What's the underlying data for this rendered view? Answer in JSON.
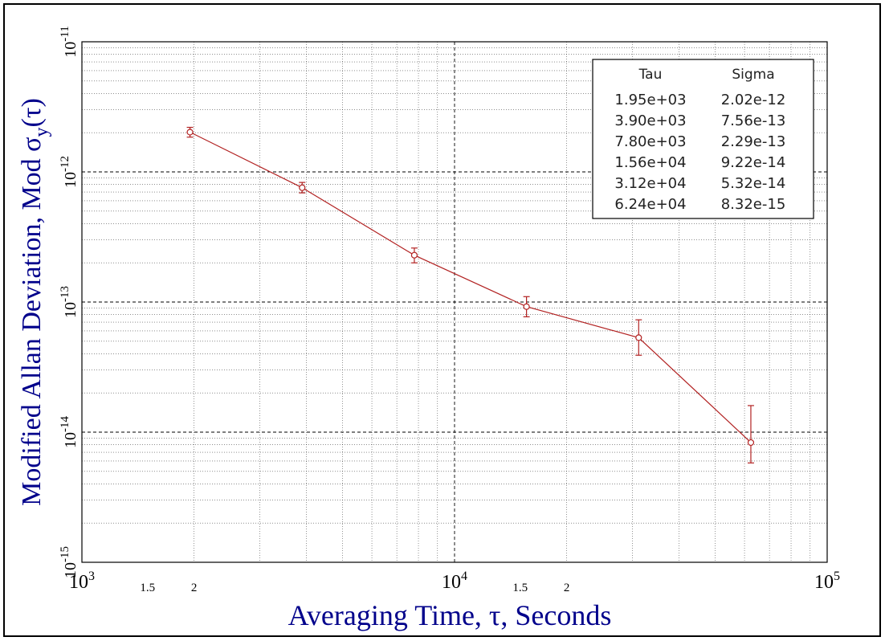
{
  "chart_data": {
    "type": "scatter",
    "title": "",
    "xlabel": "Averaging Time, τ, Seconds",
    "ylabel": {
      "prefix": "Modified Allan Deviation, Mod ",
      "symbol": "σ",
      "subscript": "y",
      "suffix": "(τ)"
    },
    "x_scale": "log",
    "y_scale": "log",
    "xlim": [
      1000,
      100000
    ],
    "ylim": [
      1e-15,
      1e-11
    ],
    "grid": true,
    "x_ticks": [
      {
        "value": 1000,
        "base": "10",
        "exp": "3"
      },
      {
        "value": 10000,
        "base": "10",
        "exp": "4"
      },
      {
        "value": 100000,
        "base": "10",
        "exp": "5"
      }
    ],
    "x_minor_labels": [
      {
        "value": 1500,
        "label": "1.5"
      },
      {
        "value": 2000,
        "label": "2"
      },
      {
        "value": 15000,
        "label": "1.5"
      },
      {
        "value": 20000,
        "label": "2"
      }
    ],
    "y_ticks": [
      {
        "value": 1e-15,
        "base": "10",
        "exp": "-15"
      },
      {
        "value": 1e-14,
        "base": "10",
        "exp": "-14"
      },
      {
        "value": 1e-13,
        "base": "10",
        "exp": "-13"
      },
      {
        "value": 1e-12,
        "base": "10",
        "exp": "-12"
      },
      {
        "value": 1e-11,
        "base": "10",
        "exp": "-11"
      }
    ],
    "series": [
      {
        "points": [
          {
            "x": 1950,
            "y": 2.02e-12,
            "err_low": 1.85e-12,
            "err_high": 2.2e-12
          },
          {
            "x": 3900,
            "y": 7.56e-13,
            "err_low": 6.9e-13,
            "err_high": 8.3e-13
          },
          {
            "x": 7800,
            "y": 2.29e-13,
            "err_low": 2e-13,
            "err_high": 2.6e-13
          },
          {
            "x": 15600,
            "y": 9.22e-14,
            "err_low": 7.7e-14,
            "err_high": 1.1e-13
          },
          {
            "x": 31200,
            "y": 5.32e-14,
            "err_low": 3.9e-14,
            "err_high": 7.3e-14
          },
          {
            "x": 62400,
            "y": 8.32e-15,
            "err_low": 5.8e-15,
            "err_high": 1.6e-14
          }
        ]
      }
    ],
    "table": {
      "headers": [
        "Tau",
        "Sigma"
      ],
      "rows": [
        [
          "1.95e+03",
          "2.02e-12"
        ],
        [
          "3.90e+03",
          "7.56e-13"
        ],
        [
          "7.80e+03",
          "2.29e-13"
        ],
        [
          "1.56e+04",
          "9.22e-14"
        ],
        [
          "3.12e+04",
          "5.32e-14"
        ],
        [
          "6.24e+04",
          "8.32e-15"
        ]
      ]
    },
    "table_placement": "top-right",
    "colors": {
      "series": "#b22222",
      "axis_title": "#00008b",
      "grid": "#000000"
    }
  }
}
